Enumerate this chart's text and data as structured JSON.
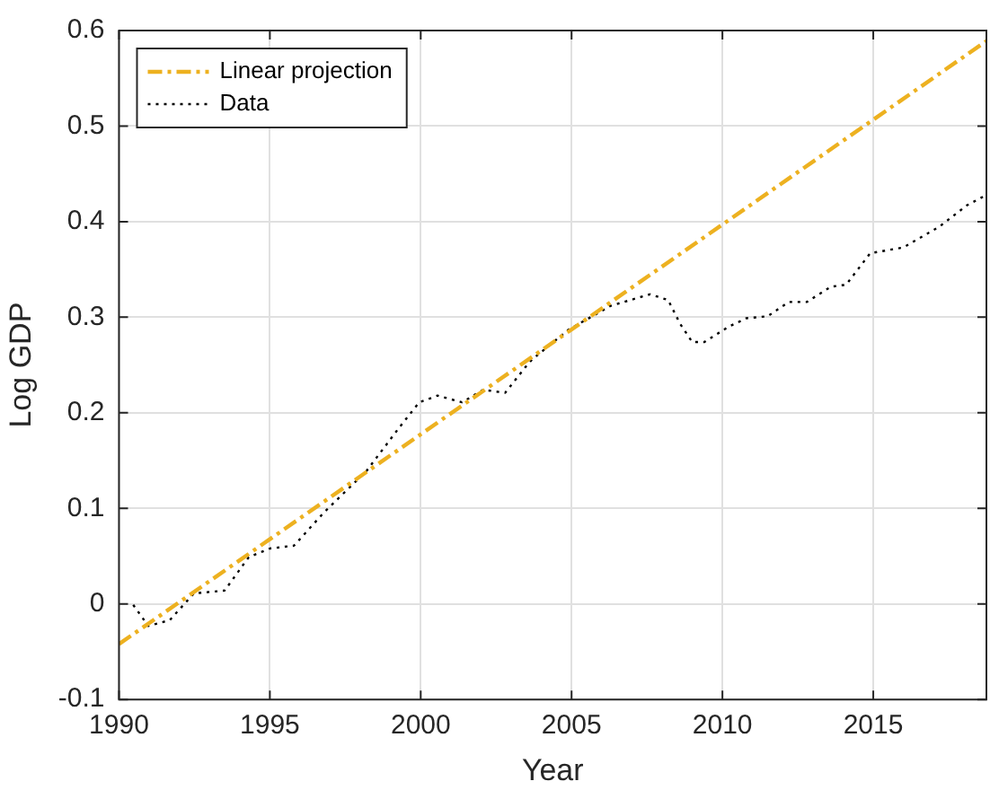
{
  "chart_data": {
    "type": "line",
    "xlabel": "Year",
    "ylabel": "Log GDP",
    "xlim": [
      1990,
      2018.75
    ],
    "xticks": [
      1990,
      1995,
      2000,
      2005,
      2010,
      2015
    ],
    "ylim": [
      -0.1,
      0.6
    ],
    "yticks": [
      -0.1,
      0,
      0.1,
      0.2,
      0.3,
      0.4,
      0.5,
      0.6
    ],
    "grid": true,
    "legend": "top left",
    "marker": "none",
    "series": [
      {
        "name": "Linear projection",
        "color": "#edb120",
        "line_style": "dashed",
        "x": [
          1990,
          2018.75
        ],
        "values": [
          -0.042,
          0.589
        ]
      },
      {
        "name": "Data",
        "color": "#000000",
        "line_style": "dotted",
        "x": [
          1990.47,
          1990.97,
          1991.68,
          1992.48,
          1993.5,
          1994.3,
          1995,
          1995.8,
          1996.8,
          1998.2,
          1999.25,
          1999.95,
          2000.56,
          2001.37,
          2002.07,
          2002.8,
          2003.5,
          2003.7,
          2004.9,
          2006.3,
          2007.6,
          2008.2,
          2008.6,
          2009.0,
          2009.4,
          2010.2,
          2010.8,
          2011.5,
          2012.2,
          2012.8,
          2013.6,
          2014.1,
          2014.9,
          2016.0,
          2017.2,
          2018.1,
          2018.75
        ],
        "values": [
          -0.001,
          -0.023,
          -0.017,
          0.011,
          0.014,
          0.049,
          0.058,
          0.061,
          0.096,
          0.139,
          0.183,
          0.211,
          0.218,
          0.211,
          0.224,
          0.221,
          0.249,
          0.256,
          0.287,
          0.312,
          0.324,
          0.318,
          0.293,
          0.274,
          0.274,
          0.29,
          0.299,
          0.301,
          0.316,
          0.316,
          0.332,
          0.334,
          0.367,
          0.373,
          0.395,
          0.417,
          0.428
        ]
      }
    ]
  }
}
